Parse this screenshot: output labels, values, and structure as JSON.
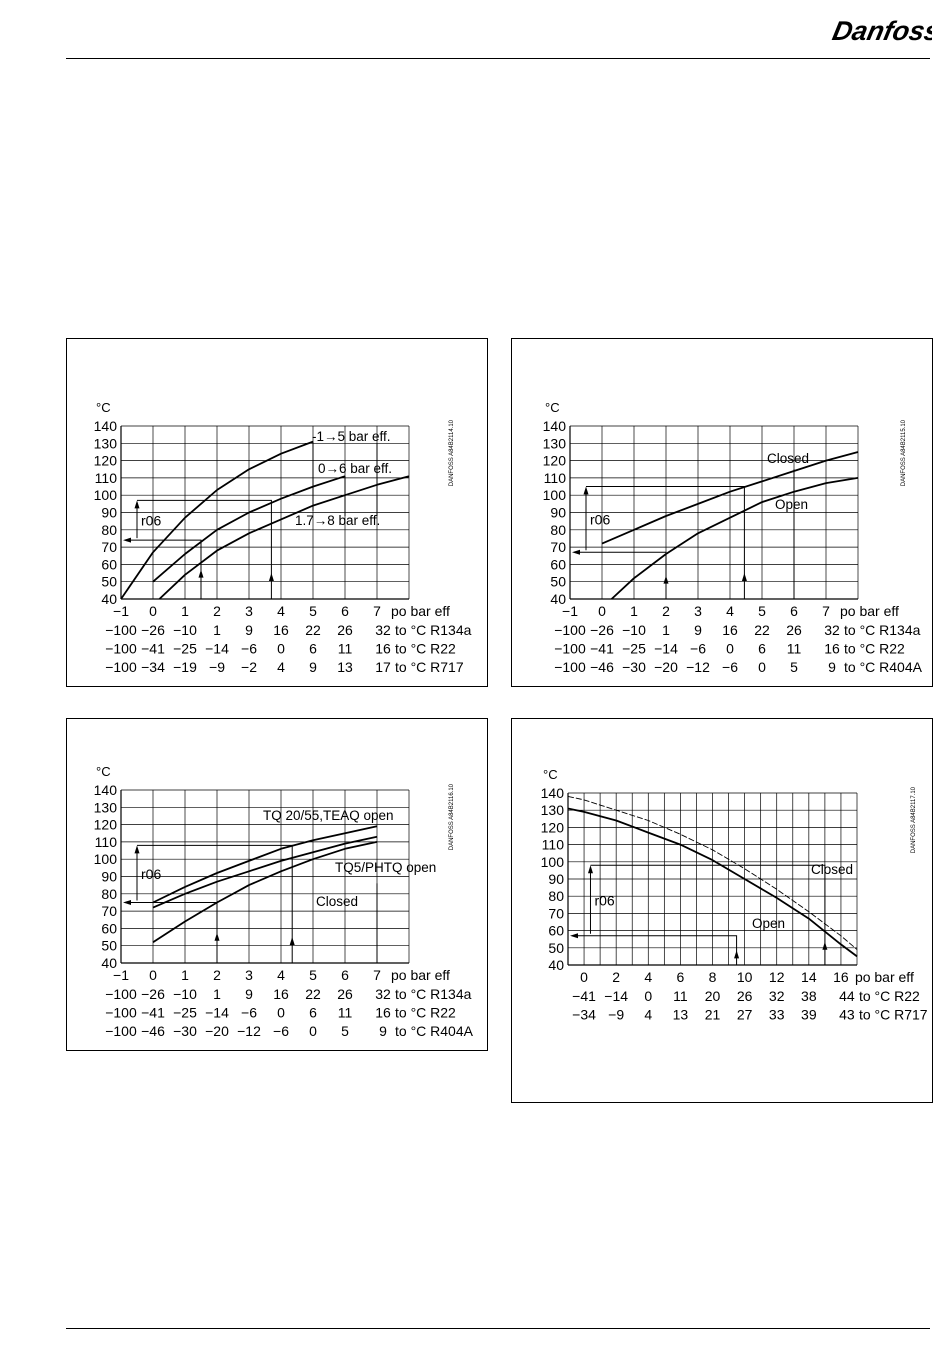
{
  "header": {
    "logo_text": "Danfoss"
  },
  "colors": {
    "ink": "#000000",
    "grid": "#000000"
  },
  "chart_data": [
    {
      "type": "line",
      "id": "chart1",
      "ylabel": "°C",
      "code": "DANFOSS A84B2114.10",
      "xlabel": "po bar eff",
      "xlim": [
        -1,
        8
      ],
      "ylim": [
        40,
        140
      ],
      "xticks": [
        -1,
        0,
        1,
        2,
        3,
        4,
        5,
        6,
        7
      ],
      "yticks": [
        40,
        50,
        60,
        70,
        80,
        90,
        100,
        110,
        120,
        130,
        140
      ],
      "series": [
        {
          "name": "-1→5 bar eff.",
          "style": "solid",
          "x": [
            -1,
            0,
            1,
            2,
            3,
            4,
            5
          ],
          "y": [
            40,
            67,
            87,
            103,
            115,
            124,
            131
          ]
        },
        {
          "name": "0→6 bar eff.",
          "style": "solid",
          "x": [
            0,
            1,
            2,
            3,
            4,
            5,
            6
          ],
          "y": [
            50,
            66,
            80,
            90,
            98,
            105,
            111
          ]
        },
        {
          "name": "1.7→8 bar eff.",
          "style": "solid",
          "x": [
            0.2,
            1,
            2,
            3,
            4,
            5,
            6,
            7,
            8
          ],
          "y": [
            40,
            54,
            68,
            78,
            86,
            94,
            100,
            106,
            111
          ]
        }
      ],
      "annotation": "r06",
      "guides": {
        "r06_low": 74,
        "r06_high": 97,
        "p_low": 1.5,
        "p_high": 3.7,
        "r06_x": -0.5
      },
      "scale_rows": [
        {
          "values": [
            "−100",
            "−26",
            "−10",
            "1",
            "9",
            "16",
            "22",
            "26",
            "32"
          ],
          "suffix": "to °C R134a"
        },
        {
          "values": [
            "−100",
            "−41",
            "−25",
            "−14",
            "−6",
            "0",
            "6",
            "11",
            "16"
          ],
          "suffix": "to °C R22"
        },
        {
          "values": [
            "−100",
            "−34",
            "−19",
            "−9",
            "−2",
            "4",
            "9",
            "13",
            "17"
          ],
          "suffix": "to °C R717"
        }
      ]
    },
    {
      "type": "line",
      "id": "chart2",
      "ylabel": "°C",
      "code": "DANFOSS A84B2115.10",
      "xlabel": "po bar eff",
      "xlim": [
        -1,
        8
      ],
      "ylim": [
        40,
        140
      ],
      "xticks": [
        -1,
        0,
        1,
        2,
        3,
        4,
        5,
        6,
        7
      ],
      "yticks": [
        40,
        50,
        60,
        70,
        80,
        90,
        100,
        110,
        120,
        130,
        140
      ],
      "series": [
        {
          "name": "Closed",
          "style": "solid",
          "x": [
            0,
            1,
            2,
            3,
            4,
            5,
            6,
            7,
            8
          ],
          "y": [
            72,
            80,
            88,
            95,
            102,
            108,
            114,
            120,
            125
          ]
        },
        {
          "name": "Open",
          "style": "solid",
          "x": [
            0.3,
            1,
            2,
            3,
            4,
            5,
            6,
            7,
            8
          ],
          "y": [
            40,
            52,
            66,
            78,
            87,
            96,
            102,
            107,
            110
          ]
        }
      ],
      "annotation": "r06",
      "guides": {
        "r06_low": 67,
        "r06_high": 105,
        "p_low": 2,
        "p_high": 4.45,
        "r06_x": -0.5
      },
      "scale_rows": [
        {
          "values": [
            "−100",
            "−26",
            "−10",
            "1",
            "9",
            "16",
            "22",
            "26",
            "32"
          ],
          "suffix": "to °C R134a"
        },
        {
          "values": [
            "−100",
            "−41",
            "−25",
            "−14",
            "−6",
            "0",
            "6",
            "11",
            "16"
          ],
          "suffix": "to °C R22"
        },
        {
          "values": [
            "−100",
            "−46",
            "−30",
            "−20",
            "−12",
            "−6",
            "0",
            "5",
            "9"
          ],
          "suffix": "to °C R404A"
        }
      ]
    },
    {
      "type": "line",
      "id": "chart3",
      "ylabel": "°C",
      "code": "DANFOSS A84B2116.10",
      "xlabel": "po bar eff",
      "xlim": [
        -1,
        8
      ],
      "ylim": [
        40,
        140
      ],
      "xticks": [
        -1,
        0,
        1,
        2,
        3,
        4,
        5,
        6,
        7
      ],
      "yticks": [
        40,
        50,
        60,
        70,
        80,
        90,
        100,
        110,
        120,
        130,
        140
      ],
      "series": [
        {
          "name": "TQ 20/55,TEAQ open",
          "style": "solid",
          "x": [
            0,
            1,
            2,
            3,
            4,
            5,
            6,
            7
          ],
          "y": [
            75,
            84,
            92,
            99,
            106,
            111,
            115,
            119
          ]
        },
        {
          "name": "TQ5/PHTQ open",
          "style": "solid",
          "x": [
            0,
            1,
            2,
            3,
            4,
            5,
            6,
            7
          ],
          "y": [
            72,
            80,
            87,
            93,
            99,
            104,
            109,
            113
          ]
        },
        {
          "name": "Closed",
          "style": "solid",
          "x": [
            0,
            1,
            2,
            3,
            4,
            5,
            6,
            7
          ],
          "y": [
            52,
            64,
            75,
            85,
            93,
            100,
            106,
            110
          ]
        }
      ],
      "annotation": "r06",
      "guides": {
        "r06_low": 75,
        "r06_high": 108,
        "p_low": 2,
        "p_high": 4.35,
        "r06_x": -0.5
      },
      "scale_rows": [
        {
          "values": [
            "−100",
            "−26",
            "−10",
            "1",
            "9",
            "16",
            "22",
            "26",
            "32"
          ],
          "suffix": "to °C R134a"
        },
        {
          "values": [
            "−100",
            "−41",
            "−25",
            "−14",
            "−6",
            "0",
            "6",
            "11",
            "16"
          ],
          "suffix": "to °C R22"
        },
        {
          "values": [
            "−100",
            "−46",
            "−30",
            "−20",
            "−12",
            "−6",
            "0",
            "5",
            "9"
          ],
          "suffix": "to °C R404A"
        }
      ]
    },
    {
      "type": "line",
      "id": "chart4",
      "ylabel": "°C",
      "code": "DANFOSS A84B2117.10",
      "xlabel": "po bar eff",
      "xlim": [
        -1,
        17
      ],
      "ylim": [
        40,
        140
      ],
      "xticks": [
        0,
        2,
        4,
        6,
        8,
        10,
        12,
        14,
        16
      ],
      "yticks": [
        40,
        50,
        60,
        70,
        80,
        90,
        100,
        110,
        120,
        130,
        140
      ],
      "series": [
        {
          "name": "Closed",
          "style": "solid",
          "x": [
            -1,
            0,
            2,
            4,
            6,
            8,
            10,
            12,
            14,
            16,
            17
          ],
          "y": [
            131,
            129,
            124,
            117,
            110,
            101,
            90,
            79,
            67,
            52,
            45
          ]
        },
        {
          "name": "Open",
          "style": "dashed",
          "x": [
            -1,
            0,
            2,
            4,
            6,
            8,
            10,
            12,
            14,
            16,
            17
          ],
          "y": [
            138,
            136,
            130,
            124,
            116,
            107,
            96,
            84,
            71,
            57,
            49
          ]
        }
      ],
      "annotation": "r06",
      "guides": {
        "r06_low": 57,
        "r06_high": 98,
        "p_low": 9.5,
        "p_high": 15,
        "r06_x": 0.4
      },
      "scale_rows": [
        {
          "values": [
            "−41",
            "−14",
            "0",
            "11",
            "20",
            "26",
            "32",
            "38",
            "44"
          ],
          "suffix": "to °C R22"
        },
        {
          "values": [
            "−34",
            "−9",
            "4",
            "13",
            "21",
            "27",
            "33",
            "39",
            "43"
          ],
          "suffix": "to °C R717"
        }
      ]
    }
  ]
}
